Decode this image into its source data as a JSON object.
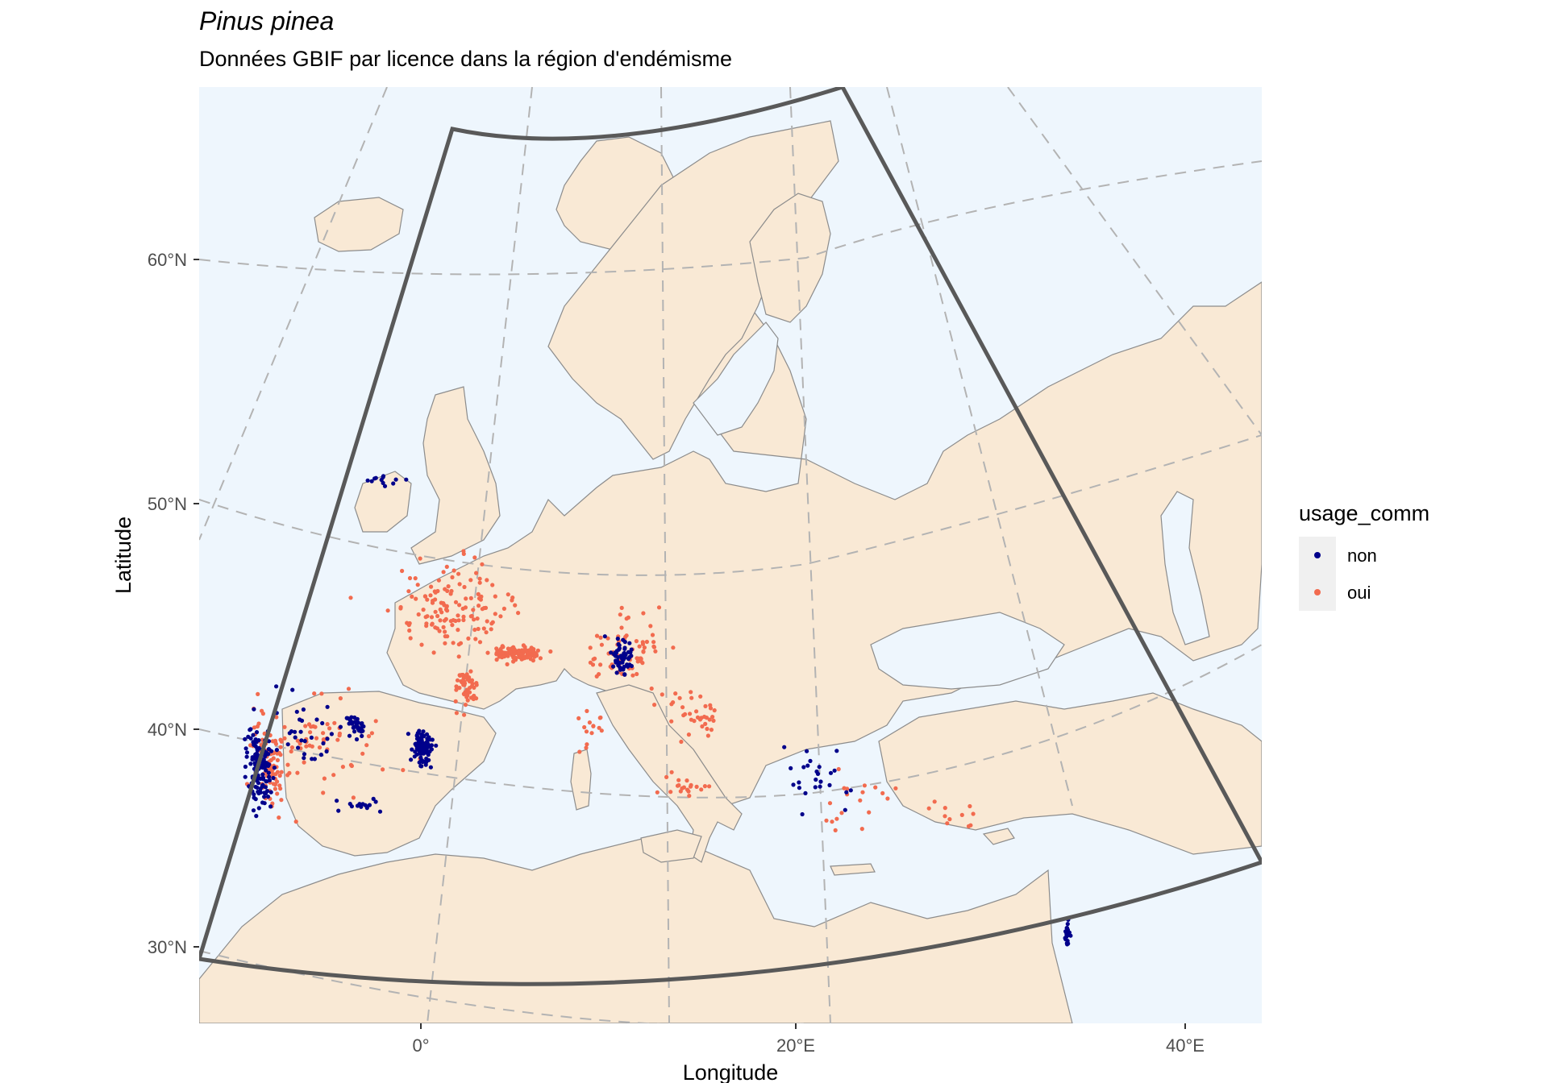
{
  "title": "Pinus pinea",
  "subtitle": "Données GBIF par licence dans la région d'endémisme",
  "colors": {
    "ocean": "#eef6fd",
    "land": "#f9e9d5",
    "border": "#8c8c8c",
    "graticule": "#b3b3b3",
    "region_outline": "#595959",
    "non": "#00008b",
    "oui": "#f26b4f",
    "legend_key_bg": "#f0f0f0"
  },
  "chart_data": {
    "type": "scatter",
    "x_axis_label": "Longitude",
    "y_axis_label": "Latitude",
    "x_ticks": [
      "0°",
      "20°E",
      "40°E"
    ],
    "y_ticks": [
      "60°N",
      "50°N",
      "40°N",
      "30°N"
    ],
    "legend": {
      "title": "usage_comm",
      "entries": [
        {
          "label": "non",
          "color": "#00008b"
        },
        {
          "label": "oui",
          "color": "#f26b4f"
        }
      ]
    },
    "lon_range": [
      -10,
      44
    ],
    "lat_range": [
      27,
      65
    ],
    "clusters": [
      {
        "usage_comm": "non",
        "lon": -8.8,
        "lat": 39.0,
        "spread_lon": 0.7,
        "spread_lat": 1.8,
        "n": 130
      },
      {
        "usage_comm": "oui",
        "lon": -8.2,
        "lat": 39.3,
        "spread_lon": 1.0,
        "spread_lat": 2.0,
        "n": 90
      },
      {
        "usage_comm": "oui",
        "lon": -5.0,
        "lat": 40.0,
        "spread_lon": 3.5,
        "spread_lat": 2.5,
        "n": 60
      },
      {
        "usage_comm": "non",
        "lon": -6.0,
        "lat": 40.3,
        "spread_lon": 2.2,
        "spread_lat": 1.8,
        "n": 35
      },
      {
        "usage_comm": "non",
        "lon": -3.5,
        "lat": 40.5,
        "spread_lon": 0.6,
        "spread_lat": 0.5,
        "n": 30
      },
      {
        "usage_comm": "non",
        "lon": 0.0,
        "lat": 39.4,
        "spread_lon": 0.5,
        "spread_lat": 0.9,
        "n": 90
      },
      {
        "usage_comm": "oui",
        "lon": 2.5,
        "lat": 42.0,
        "spread_lon": 0.6,
        "spread_lat": 0.8,
        "n": 50
      },
      {
        "usage_comm": "oui",
        "lon": 5.3,
        "lat": 43.4,
        "spread_lon": 1.3,
        "spread_lat": 0.3,
        "n": 110
      },
      {
        "usage_comm": "oui",
        "lon": 2.0,
        "lat": 45.5,
        "spread_lon": 3.0,
        "spread_lat": 2.0,
        "n": 140
      },
      {
        "usage_comm": "oui",
        "lon": 11.0,
        "lat": 43.5,
        "spread_lon": 2.0,
        "spread_lat": 1.5,
        "n": 70
      },
      {
        "usage_comm": "non",
        "lon": 10.8,
        "lat": 43.2,
        "spread_lon": 0.6,
        "spread_lat": 0.8,
        "n": 60
      },
      {
        "usage_comm": "oui",
        "lon": 14.5,
        "lat": 40.8,
        "spread_lon": 1.5,
        "spread_lat": 1.2,
        "n": 35
      },
      {
        "usage_comm": "oui",
        "lon": 14.0,
        "lat": 37.6,
        "spread_lon": 1.2,
        "spread_lat": 0.5,
        "n": 20
      },
      {
        "usage_comm": "oui",
        "lon": 9.0,
        "lat": 40.0,
        "spread_lon": 0.6,
        "spread_lat": 1.0,
        "n": 15
      },
      {
        "usage_comm": "non",
        "lon": 21.0,
        "lat": 38.2,
        "spread_lon": 2.0,
        "spread_lat": 1.2,
        "n": 25
      },
      {
        "usage_comm": "oui",
        "lon": 23.5,
        "lat": 37.5,
        "spread_lon": 2.5,
        "spread_lat": 2.0,
        "n": 20
      },
      {
        "usage_comm": "non",
        "lon": 35.0,
        "lat": 32.3,
        "spread_lon": 0.2,
        "spread_lat": 0.6,
        "n": 20
      },
      {
        "usage_comm": "oui",
        "lon": 28.5,
        "lat": 37.0,
        "spread_lon": 2.0,
        "spread_lat": 0.6,
        "n": 10
      },
      {
        "usage_comm": "non",
        "lon": -0.8,
        "lat": 51.3,
        "spread_lon": 1.0,
        "spread_lat": 0.2,
        "n": 12
      },
      {
        "usage_comm": "non",
        "lon": -3.5,
        "lat": 37.0,
        "spread_lon": 1.5,
        "spread_lat": 0.3,
        "n": 15
      }
    ]
  }
}
